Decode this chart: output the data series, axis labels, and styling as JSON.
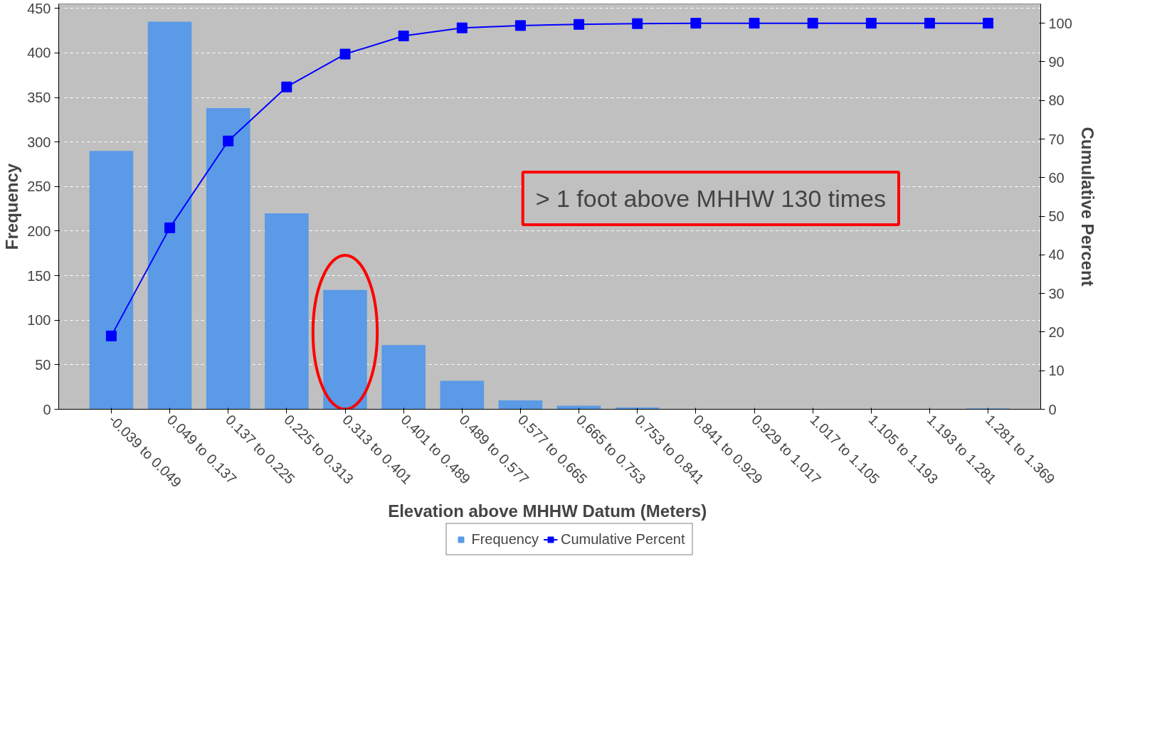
{
  "chart_data": {
    "type": "bar",
    "xlabel": "Elevation above MHHW Datum  (Meters)",
    "ylabel": "Frequency",
    "y2label": "Cumulative Percent",
    "categories": [
      "-0.039 to 0.049",
      "0.049 to 0.137",
      "0.137 to 0.225",
      "0.225 to 0.313",
      "0.313 to 0.401",
      "0.401 to 0.489",
      "0.489 to 0.577",
      "0.577 to 0.665",
      "0.665 to 0.753",
      "0.753 to 0.841",
      "0.841 to 0.929",
      "0.929 to 1.017",
      "1.017 to 1.105",
      "1.105 to 1.193",
      "1.193 to 1.281",
      "1.281 to 1.369"
    ],
    "series": [
      {
        "name": "Frequency",
        "color": "#5a9ae6",
        "values": [
          290,
          435,
          338,
          220,
          134,
          72,
          32,
          10,
          4,
          2,
          0,
          0,
          0,
          0,
          0,
          1
        ]
      },
      {
        "name": "Cumulative Percent",
        "type": "line",
        "axis": "y2",
        "color": "#0000ff",
        "values": [
          19,
          47,
          69.5,
          83.5,
          92,
          96.7,
          98.8,
          99.4,
          99.7,
          99.9,
          100,
          100,
          100,
          100,
          100,
          100
        ]
      }
    ],
    "ylim": [
      0,
      455
    ],
    "yticks": [
      0,
      50,
      100,
      150,
      200,
      250,
      300,
      350,
      400,
      450
    ],
    "y2lim": [
      0,
      105
    ],
    "y2ticks": [
      0,
      10,
      20,
      30,
      40,
      50,
      60,
      70,
      80,
      90,
      100
    ],
    "grid": "y",
    "legend": "bottom",
    "marker": "square",
    "annotations": [
      "> 1 foot above MHHW 130 times"
    ]
  }
}
